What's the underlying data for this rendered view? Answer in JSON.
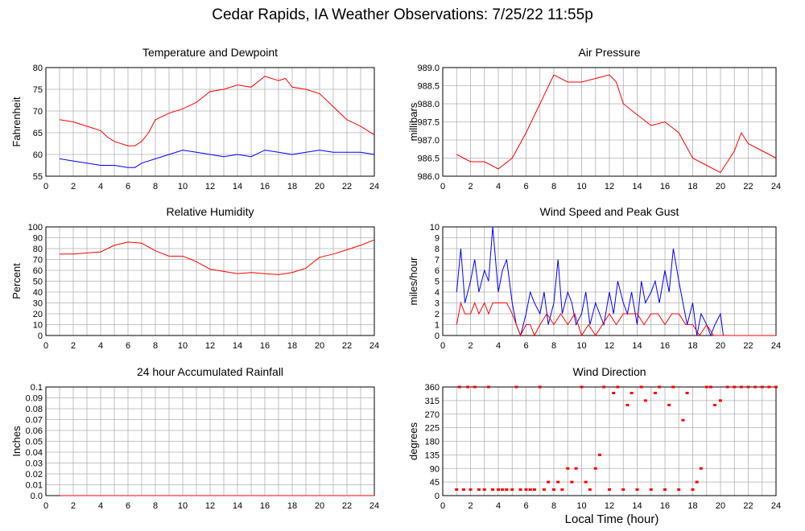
{
  "page": {
    "title": "Cedar Rapids, IA Weather Observations: 7/25/22 11:55p",
    "xlabel": "Local Time (hour)"
  },
  "chart_data": [
    {
      "type": "line",
      "title": "Temperature and Dewpoint",
      "xlabel": "",
      "ylabel": "Fahrenheit",
      "xlim": [
        0,
        24
      ],
      "ylim": [
        55,
        80
      ],
      "xticks": [
        2,
        4,
        6,
        8,
        10,
        12,
        14,
        16,
        18,
        20,
        22,
        24
      ],
      "yticks": [
        55,
        60,
        65,
        70,
        75,
        80
      ],
      "grid": true,
      "series": [
        {
          "color": "#ff0000",
          "x": [
            1,
            2,
            3,
            4,
            4.5,
            5,
            6,
            6.5,
            7,
            7.5,
            8,
            9,
            10,
            11,
            12,
            13,
            14,
            15,
            16,
            17,
            17.5,
            18,
            19,
            20,
            21,
            22,
            23,
            24
          ],
          "y": [
            68,
            67.5,
            66.5,
            65.5,
            64,
            63,
            62,
            62,
            63,
            65,
            68,
            69.5,
            70.5,
            72,
            74.5,
            75,
            76,
            75.5,
            78,
            77,
            77.5,
            75.5,
            75,
            74,
            71,
            68,
            66.5,
            64.5
          ]
        },
        {
          "color": "#0000ff",
          "x": [
            1,
            2,
            3,
            4,
            5,
            6,
            6.5,
            7,
            8,
            9,
            10,
            11,
            12,
            13,
            14,
            15,
            16,
            17,
            18,
            19,
            20,
            21,
            22,
            23,
            24
          ],
          "y": [
            59,
            58.5,
            58,
            57.5,
            57.5,
            57,
            57,
            58,
            59,
            60,
            61,
            60.5,
            60,
            59.5,
            60,
            59.5,
            61,
            60.5,
            60,
            60.5,
            61,
            60.5,
            60.5,
            60.5,
            60
          ]
        }
      ]
    },
    {
      "type": "line",
      "title": "Air Pressure",
      "xlabel": "",
      "ylabel": "millibars",
      "xlim": [
        0,
        24
      ],
      "ylim": [
        986.0,
        989.0
      ],
      "xticks": [
        2,
        4,
        6,
        8,
        10,
        12,
        14,
        16,
        18,
        20,
        22,
        24
      ],
      "yticks": [
        "986.0",
        "986.5",
        "987.0",
        "987.5",
        "988.0",
        "988.5",
        "989.0"
      ],
      "grid": true,
      "series": [
        {
          "color": "#ff0000",
          "x": [
            1,
            2,
            3,
            4,
            5,
            6,
            7,
            8,
            9,
            10,
            11,
            12,
            12.5,
            13,
            14,
            15,
            16,
            17,
            18,
            19,
            20,
            21,
            21.5,
            22,
            23,
            24
          ],
          "y": [
            986.6,
            986.4,
            986.4,
            986.2,
            986.5,
            987.2,
            988.0,
            988.8,
            988.6,
            988.6,
            988.7,
            988.8,
            988.6,
            988.0,
            987.7,
            987.4,
            987.5,
            987.2,
            986.5,
            986.3,
            986.1,
            986.7,
            987.2,
            986.9,
            986.7,
            986.5
          ]
        }
      ]
    },
    {
      "type": "line",
      "title": "Relative Humidity",
      "xlabel": "",
      "ylabel": "Percent",
      "xlim": [
        0,
        24
      ],
      "ylim": [
        0,
        100
      ],
      "xticks": [
        2,
        4,
        6,
        8,
        10,
        12,
        14,
        16,
        18,
        20,
        22,
        24
      ],
      "yticks": [
        0,
        10,
        20,
        30,
        40,
        50,
        60,
        70,
        80,
        90,
        100
      ],
      "grid": true,
      "series": [
        {
          "color": "#ff0000",
          "x": [
            1,
            2,
            3,
            4,
            5,
            6,
            7,
            8,
            9,
            10,
            11,
            12,
            13,
            14,
            15,
            16,
            17,
            18,
            19,
            20,
            21,
            22,
            23,
            24
          ],
          "y": [
            75,
            75,
            76,
            77,
            83,
            86,
            85,
            78,
            73,
            73,
            68,
            61,
            59,
            57,
            58,
            57,
            56,
            58,
            62,
            72,
            75,
            79,
            83,
            88
          ]
        }
      ]
    },
    {
      "type": "line",
      "title": "Wind Speed and Peak Gust",
      "xlabel": "",
      "ylabel": "miles/hour",
      "xlim": [
        0,
        24
      ],
      "ylim": [
        0,
        10
      ],
      "xticks": [
        2,
        4,
        6,
        8,
        10,
        12,
        14,
        16,
        18,
        20,
        22,
        24
      ],
      "yticks": [
        0,
        1,
        2,
        3,
        4,
        5,
        6,
        7,
        8,
        9,
        10
      ],
      "grid": true,
      "series": [
        {
          "color": "#0000ff",
          "x": [
            1,
            1.3,
            1.6,
            2,
            2.3,
            2.6,
            3,
            3.3,
            3.6,
            4,
            4.3,
            4.6,
            5,
            5.3,
            5.6,
            6,
            6.3,
            6.6,
            7,
            7.3,
            7.6,
            8,
            8.3,
            8.6,
            9,
            9.3,
            9.6,
            10,
            10.3,
            10.6,
            11,
            11.3,
            11.6,
            12,
            12.3,
            12.6,
            13,
            13.3,
            13.6,
            14,
            14.3,
            14.6,
            15,
            15.3,
            15.6,
            16,
            16.3,
            16.6,
            17,
            17.3,
            17.6,
            18,
            18.3,
            18.6,
            19,
            19.3,
            19.6,
            20,
            20.2,
            20.5,
            21,
            22,
            23,
            24
          ],
          "y": [
            4,
            8,
            3,
            5,
            7,
            4,
            6,
            5,
            10,
            4,
            6,
            7,
            3,
            1,
            0,
            2,
            4,
            3,
            2,
            4,
            1,
            3,
            7,
            2,
            4,
            3,
            1,
            2,
            4,
            1,
            3,
            2,
            1,
            4,
            2,
            5,
            3,
            2,
            4,
            1,
            5,
            3,
            4,
            5,
            3,
            6,
            4,
            8,
            5,
            3,
            1,
            3,
            0,
            2,
            1,
            0,
            1,
            2,
            0,
            0,
            0,
            0,
            0,
            0
          ]
        },
        {
          "color": "#ff0000",
          "x": [
            1,
            1.3,
            1.6,
            2,
            2.3,
            2.6,
            3,
            3.3,
            3.6,
            4,
            4.3,
            4.6,
            5,
            5.3,
            5.6,
            6,
            6.3,
            6.6,
            7,
            7.5,
            8,
            8.5,
            9,
            9.5,
            10,
            10.5,
            11,
            11.5,
            12,
            12.5,
            13,
            13.5,
            14,
            14.5,
            15,
            15.5,
            16,
            16.5,
            17,
            17.5,
            18,
            18.5,
            19,
            19.5,
            20,
            21,
            22,
            23,
            24
          ],
          "y": [
            1,
            3,
            2,
            2,
            3,
            2,
            3,
            2,
            3,
            3,
            3,
            3,
            2,
            1,
            0,
            1,
            1,
            0,
            1,
            2,
            1,
            2,
            1,
            2,
            0,
            1,
            0,
            1,
            2,
            1,
            2,
            2,
            2,
            1,
            2,
            2,
            1,
            2,
            2,
            1,
            1,
            0,
            1,
            0,
            0,
            0,
            0,
            0,
            0
          ]
        }
      ]
    },
    {
      "type": "line",
      "title": "24 hour Accumulated Rainfall",
      "xlabel": "",
      "ylabel": "Inches",
      "xlim": [
        0,
        24
      ],
      "ylim": [
        0,
        0.1
      ],
      "xticks": [
        2,
        4,
        6,
        8,
        10,
        12,
        14,
        16,
        18,
        20,
        22,
        24
      ],
      "yticks": [
        "0.0",
        "0.01",
        "0.02",
        "0.03",
        "0.04",
        "0.05",
        "0.06",
        "0.07",
        "0.08",
        "0.09",
        "0.1"
      ],
      "grid": true,
      "series": [
        {
          "color": "#ff0000",
          "x": [
            1,
            24
          ],
          "y": [
            0,
            0
          ]
        }
      ]
    },
    {
      "type": "scatter",
      "title": "Wind Direction",
      "xlabel": "Local Time (hour)",
      "ylabel": "degrees",
      "xlim": [
        0,
        24
      ],
      "ylim": [
        0,
        360
      ],
      "xticks": [
        2,
        4,
        6,
        8,
        10,
        12,
        14,
        16,
        18,
        20,
        22,
        24
      ],
      "yticks": [
        0,
        45,
        90,
        135,
        180,
        225,
        270,
        315,
        360
      ],
      "grid": true,
      "series": [
        {
          "color": "#ff0000",
          "x": [
            1,
            1.2,
            1.5,
            1.8,
            2,
            2.3,
            2.6,
            3,
            3.3,
            3.6,
            4,
            4.3,
            4.6,
            5,
            5.3,
            5.6,
            6,
            6.3,
            6.6,
            7,
            7.3,
            7.6,
            8,
            8.3,
            8.6,
            9,
            9.3,
            9.6,
            10,
            10.3,
            10.6,
            11,
            11.3,
            11.6,
            12,
            12.3,
            12.6,
            13,
            13.3,
            13.6,
            14,
            14.3,
            14.6,
            15,
            15.3,
            15.6,
            16,
            16.3,
            16.6,
            17,
            17.3,
            17.6,
            18,
            18.3,
            18.6,
            19,
            19.3,
            19.6,
            20,
            20.5,
            21,
            21.5,
            22,
            22.5,
            23,
            23.5,
            24
          ],
          "y": [
            20,
            360,
            20,
            360,
            20,
            360,
            20,
            20,
            360,
            20,
            20,
            20,
            20,
            20,
            360,
            20,
            20,
            20,
            20,
            360,
            20,
            45,
            20,
            45,
            20,
            90,
            45,
            90,
            360,
            45,
            20,
            90,
            135,
            360,
            20,
            340,
            360,
            20,
            300,
            340,
            20,
            360,
            315,
            20,
            340,
            360,
            20,
            300,
            360,
            20,
            250,
            340,
            20,
            45,
            90,
            360,
            360,
            300,
            315,
            360,
            360,
            360,
            360,
            360,
            360,
            360,
            360
          ]
        }
      ]
    }
  ]
}
